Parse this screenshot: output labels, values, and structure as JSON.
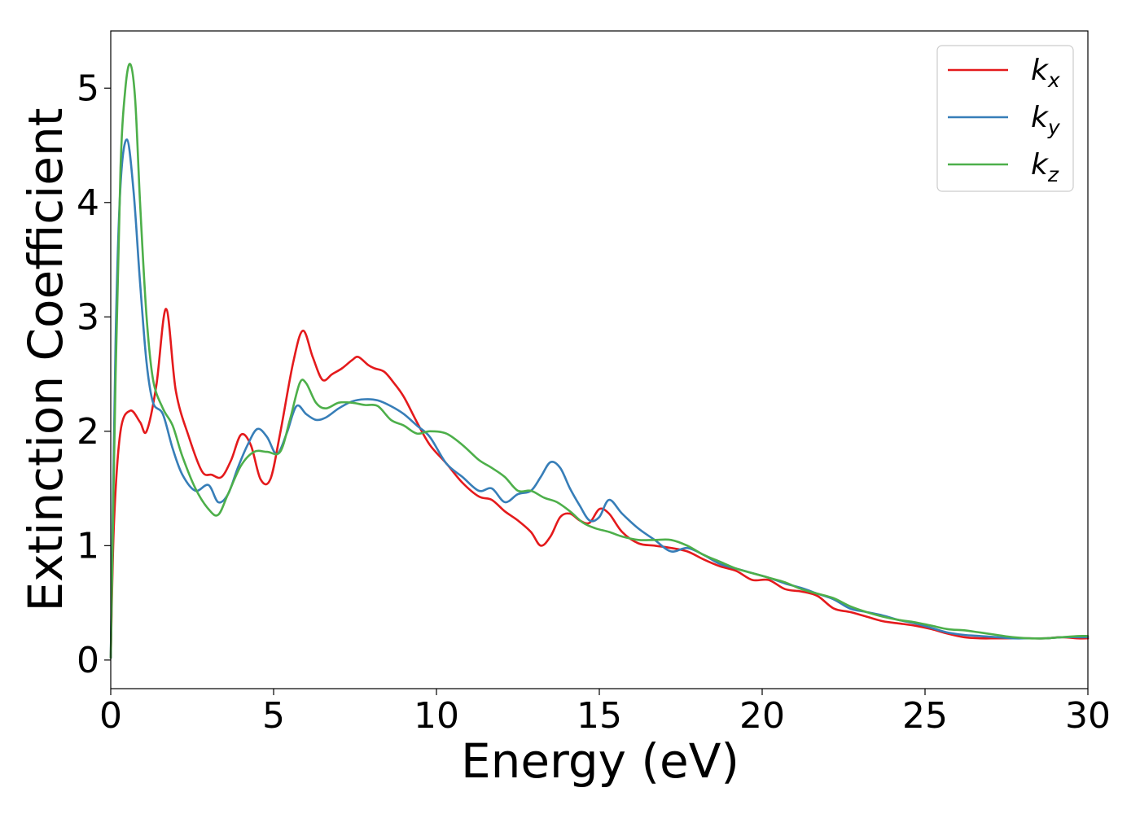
{
  "chart_data": {
    "type": "line",
    "title": "",
    "xlabel": "Energy (eV)",
    "ylabel": "Extinction Coefficient",
    "xlim": [
      0,
      30
    ],
    "ylim": [
      -0.25,
      5.5
    ],
    "xticks": [
      0,
      5,
      10,
      15,
      20,
      25,
      30
    ],
    "xtick_labels": [
      "0",
      "5",
      "10",
      "15",
      "20",
      "25",
      "30"
    ],
    "yticks": [
      0,
      1,
      2,
      3,
      4,
      5
    ],
    "ytick_labels": [
      "0",
      "1",
      "2",
      "3",
      "4",
      "5"
    ],
    "grid": false,
    "legend_position": "top-right",
    "series": [
      {
        "name": "k_x",
        "label_main": "k",
        "label_sub": "x",
        "color": "#e41a1c",
        "x": [
          0,
          0.1,
          0.3,
          0.6,
          0.9,
          1.1,
          1.4,
          1.7,
          2.0,
          2.4,
          2.8,
          3.1,
          3.4,
          3.7,
          4.0,
          4.3,
          4.6,
          4.9,
          5.2,
          5.6,
          5.9,
          6.2,
          6.5,
          6.8,
          7.1,
          7.4,
          7.6,
          7.9,
          8.1,
          8.4,
          8.7,
          9.0,
          9.4,
          9.8,
          10.3,
          10.8,
          11.3,
          11.7,
          12.1,
          12.5,
          12.9,
          13.2,
          13.5,
          13.8,
          14.1,
          14.4,
          14.7,
          15.0,
          15.3,
          15.7,
          16.2,
          16.7,
          17.2,
          17.7,
          18.2,
          18.7,
          19.2,
          19.7,
          20.2,
          20.7,
          21.2,
          21.7,
          22.2,
          22.7,
          23.2,
          23.7,
          24.2,
          24.7,
          25.2,
          25.7,
          26.2,
          26.7,
          27.2,
          27.7,
          28.2,
          28.7,
          29.2,
          29.7,
          30
        ],
        "y": [
          0.02,
          1.2,
          2.0,
          2.18,
          2.08,
          2.0,
          2.4,
          3.07,
          2.35,
          1.95,
          1.65,
          1.62,
          1.6,
          1.75,
          1.97,
          1.88,
          1.58,
          1.58,
          1.98,
          2.6,
          2.88,
          2.65,
          2.45,
          2.5,
          2.55,
          2.62,
          2.65,
          2.58,
          2.55,
          2.52,
          2.42,
          2.3,
          2.08,
          1.88,
          1.72,
          1.55,
          1.43,
          1.4,
          1.3,
          1.22,
          1.12,
          1.0,
          1.08,
          1.25,
          1.28,
          1.22,
          1.2,
          1.32,
          1.28,
          1.12,
          1.02,
          1.0,
          0.98,
          0.95,
          0.88,
          0.82,
          0.78,
          0.7,
          0.7,
          0.62,
          0.6,
          0.56,
          0.45,
          0.42,
          0.38,
          0.34,
          0.32,
          0.3,
          0.27,
          0.23,
          0.2,
          0.19,
          0.19,
          0.19,
          0.19,
          0.19,
          0.2,
          0.19,
          0.19
        ]
      },
      {
        "name": "k_y",
        "label_main": "k",
        "label_sub": "y",
        "color": "#377eb8",
        "x": [
          0,
          0.15,
          0.3,
          0.5,
          0.7,
          0.9,
          1.1,
          1.3,
          1.6,
          1.9,
          2.2,
          2.6,
          3.0,
          3.3,
          3.6,
          3.9,
          4.2,
          4.5,
          4.8,
          5.1,
          5.4,
          5.7,
          6.0,
          6.3,
          6.6,
          7.0,
          7.4,
          7.8,
          8.2,
          8.6,
          9.0,
          9.4,
          9.8,
          10.3,
          10.8,
          11.3,
          11.7,
          12.1,
          12.5,
          12.9,
          13.2,
          13.5,
          13.8,
          14.1,
          14.4,
          14.7,
          15.0,
          15.3,
          15.7,
          16.2,
          16.7,
          17.2,
          17.7,
          18.2,
          18.7,
          19.2,
          19.7,
          20.2,
          20.7,
          21.2,
          21.7,
          22.2,
          22.7,
          23.2,
          23.7,
          24.2,
          24.7,
          25.2,
          25.7,
          26.2,
          26.7,
          27.2,
          27.7,
          28.2,
          28.7,
          29.2,
          29.7,
          30
        ],
        "y": [
          0.02,
          2.8,
          4.15,
          4.55,
          4.1,
          3.3,
          2.6,
          2.25,
          2.15,
          1.85,
          1.62,
          1.48,
          1.53,
          1.38,
          1.45,
          1.68,
          1.88,
          2.02,
          1.95,
          1.8,
          1.98,
          2.22,
          2.15,
          2.1,
          2.12,
          2.2,
          2.26,
          2.28,
          2.27,
          2.22,
          2.15,
          2.05,
          1.95,
          1.72,
          1.6,
          1.48,
          1.5,
          1.38,
          1.45,
          1.48,
          1.6,
          1.73,
          1.68,
          1.5,
          1.35,
          1.22,
          1.25,
          1.4,
          1.28,
          1.15,
          1.05,
          0.95,
          0.98,
          0.92,
          0.84,
          0.8,
          0.76,
          0.72,
          0.67,
          0.63,
          0.58,
          0.53,
          0.45,
          0.42,
          0.39,
          0.35,
          0.32,
          0.28,
          0.24,
          0.22,
          0.21,
          0.2,
          0.19,
          0.19,
          0.19,
          0.2,
          0.2,
          0.2
        ]
      },
      {
        "name": "k_z",
        "label_main": "k",
        "label_sub": "z",
        "color": "#4daf4a",
        "x": [
          0,
          0.15,
          0.3,
          0.45,
          0.6,
          0.75,
          0.9,
          1.1,
          1.3,
          1.6,
          1.9,
          2.2,
          2.6,
          3.0,
          3.3,
          3.6,
          4.0,
          4.4,
          4.8,
          5.2,
          5.5,
          5.8,
          6.0,
          6.3,
          6.6,
          7.0,
          7.4,
          7.8,
          8.2,
          8.6,
          9.0,
          9.4,
          9.8,
          10.3,
          10.8,
          11.3,
          11.7,
          12.1,
          12.5,
          12.9,
          13.3,
          13.7,
          14.1,
          14.5,
          14.9,
          15.3,
          15.7,
          16.2,
          16.7,
          17.2,
          17.7,
          18.2,
          18.7,
          19.2,
          19.7,
          20.2,
          20.7,
          21.2,
          21.7,
          22.2,
          22.7,
          23.2,
          23.7,
          24.2,
          24.7,
          25.2,
          25.7,
          26.2,
          26.7,
          27.2,
          27.7,
          28.2,
          28.7,
          29.2,
          29.7,
          30
        ],
        "y": [
          0.02,
          2.5,
          4.3,
          5.0,
          5.21,
          4.9,
          4.0,
          3.0,
          2.45,
          2.2,
          2.05,
          1.78,
          1.5,
          1.32,
          1.27,
          1.45,
          1.7,
          1.82,
          1.82,
          1.82,
          2.1,
          2.42,
          2.42,
          2.25,
          2.2,
          2.25,
          2.25,
          2.23,
          2.22,
          2.1,
          2.05,
          1.98,
          2.0,
          1.98,
          1.88,
          1.75,
          1.68,
          1.6,
          1.48,
          1.48,
          1.42,
          1.38,
          1.3,
          1.2,
          1.15,
          1.12,
          1.08,
          1.05,
          1.05,
          1.05,
          1.0,
          0.92,
          0.86,
          0.8,
          0.76,
          0.72,
          0.68,
          0.62,
          0.58,
          0.54,
          0.47,
          0.42,
          0.38,
          0.35,
          0.33,
          0.3,
          0.27,
          0.26,
          0.24,
          0.22,
          0.2,
          0.19,
          0.19,
          0.2,
          0.21,
          0.21
        ]
      }
    ]
  }
}
